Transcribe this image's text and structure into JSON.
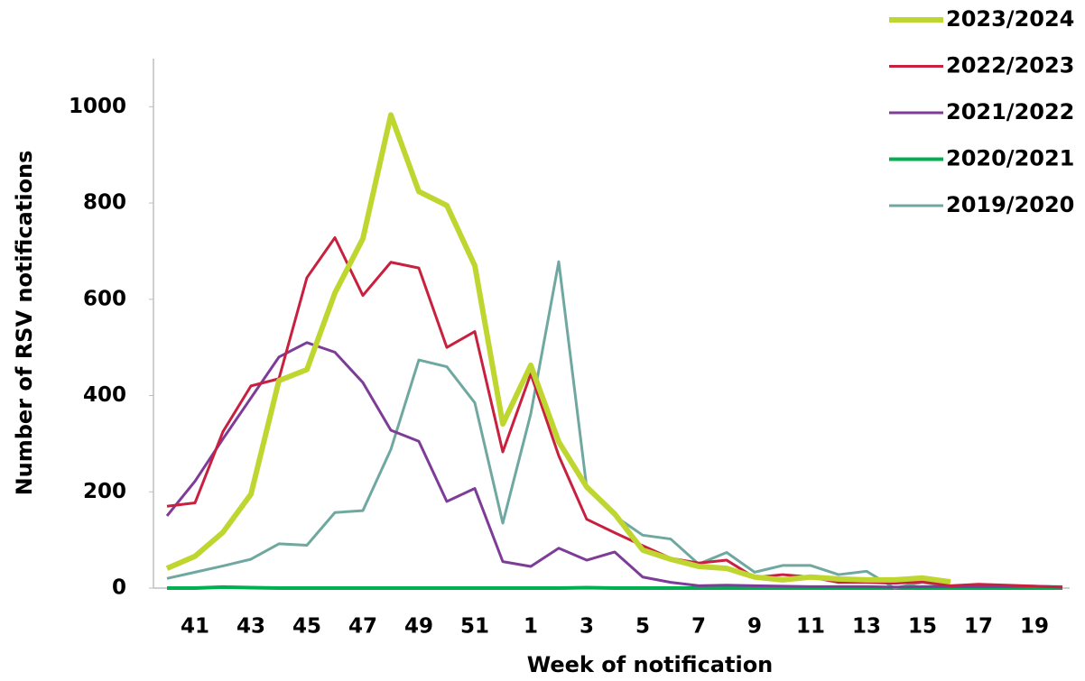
{
  "chart_data": {
    "type": "line",
    "y_label": "Number of RSV notifications",
    "x_label": "Week of notification",
    "categories": [
      null,
      41,
      null,
      43,
      null,
      45,
      null,
      47,
      null,
      49,
      null,
      51,
      null,
      1,
      null,
      3,
      null,
      5,
      null,
      7,
      null,
      9,
      null,
      11,
      null,
      13,
      null,
      15,
      null,
      17,
      null,
      19,
      null
    ],
    "ylim": [
      0,
      1100
    ],
    "yticks": [
      0,
      200,
      400,
      600,
      800,
      1000
    ],
    "legend": "top-right",
    "series": [
      {
        "name": "2023/2024",
        "color": "#bfd630",
        "linewidth": 6,
        "values": [
          41,
          66,
          116,
          195,
          431,
          454,
          613,
          726,
          983,
          824,
          795,
          670,
          341,
          463,
          304,
          210,
          154,
          79,
          60,
          45,
          41,
          23,
          17,
          23,
          19,
          17,
          17,
          21,
          13,
          null,
          null,
          null,
          null
        ]
      },
      {
        "name": "2022/2023",
        "color": "#c8203f",
        "linewidth": 3,
        "values": [
          170,
          177,
          325,
          420,
          435,
          645,
          728,
          608,
          677,
          665,
          500,
          533,
          283,
          445,
          275,
          143,
          115,
          88,
          62,
          52,
          58,
          22,
          28,
          23,
          12,
          12,
          10,
          13,
          5,
          8,
          6,
          4,
          2
        ]
      },
      {
        "name": "2021/2022",
        "color": "#7d3c98",
        "linewidth": 3,
        "values": [
          150,
          222,
          310,
          395,
          480,
          510,
          490,
          427,
          328,
          305,
          180,
          207,
          55,
          45,
          83,
          58,
          75,
          23,
          12,
          5,
          6,
          5,
          4,
          3,
          3,
          3,
          2,
          3,
          3,
          3,
          3,
          4,
          2
        ]
      },
      {
        "name": "2020/2021",
        "color": "#00b050",
        "linewidth": 4,
        "values": [
          0,
          0,
          2,
          1,
          0,
          0,
          0,
          0,
          0,
          0,
          0,
          0,
          0,
          0,
          0,
          1,
          0,
          0,
          0,
          0,
          0,
          0,
          0,
          0,
          0,
          0,
          0,
          0,
          0,
          0,
          0,
          0,
          0
        ]
      },
      {
        "name": "2019/2020",
        "color": "#6fa8a0",
        "linewidth": 3,
        "values": [
          20,
          33,
          46,
          60,
          92,
          89,
          157,
          161,
          288,
          474,
          460,
          385,
          135,
          362,
          678,
          208,
          150,
          110,
          102,
          50,
          74,
          33,
          47,
          47,
          28,
          35,
          0,
          12,
          3,
          5,
          5,
          4,
          3
        ]
      }
    ]
  }
}
